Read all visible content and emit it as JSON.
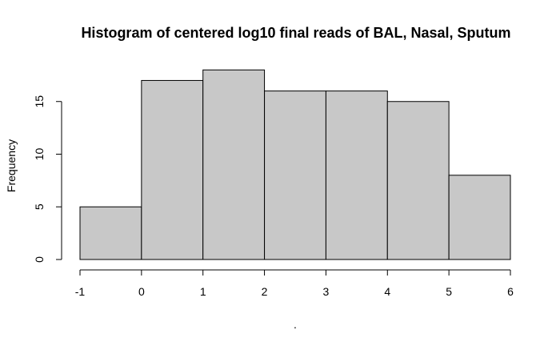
{
  "chart_data": {
    "type": "bar",
    "title": "Histogram of centered log10 final reads of BAL, Nasal, Sputum",
    "xlabel": ".",
    "ylabel": "Frequency",
    "bins": [
      {
        "from": -1,
        "to": 0,
        "value": 5
      },
      {
        "from": 0,
        "to": 1,
        "value": 17
      },
      {
        "from": 1,
        "to": 2,
        "value": 18
      },
      {
        "from": 2,
        "to": 3,
        "value": 16
      },
      {
        "from": 3,
        "to": 4,
        "value": 16
      },
      {
        "from": 4,
        "to": 5,
        "value": 15
      },
      {
        "from": 5,
        "to": 6,
        "value": 8
      }
    ],
    "xlim": [
      -1,
      6
    ],
    "ylim": [
      0,
      18
    ],
    "x_ticks": [
      -1,
      0,
      1,
      2,
      3,
      4,
      5,
      6
    ],
    "x_tick_labels": [
      "-1",
      "0",
      "1",
      "2",
      "3",
      "4",
      "5",
      "6"
    ],
    "y_ticks": [
      0,
      5,
      10,
      15
    ],
    "y_tick_labels": [
      "0",
      "5",
      "10",
      "15"
    ],
    "bar_color": "#c8c8c8",
    "edge_color": "#000000",
    "grid": false
  }
}
